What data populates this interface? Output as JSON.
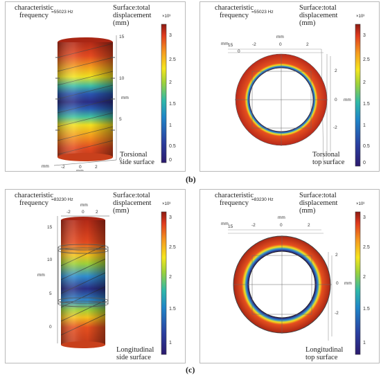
{
  "panels": {
    "torsional_side": {
      "freq_label": "characteristic frequency",
      "freq_value": "=55023 Hz",
      "disp_label": "Surface:total displacement (mm)",
      "colorbar_exp": "×10³",
      "colorbar_ticks": [
        "3",
        "2.5",
        "2",
        "1.5",
        "1",
        "0.5",
        "0"
      ],
      "axis_ticks": [
        "15",
        "10",
        "5",
        "0"
      ],
      "axis_unit": "mm",
      "x_ticks": [
        "-2",
        "0",
        "2"
      ],
      "x_unit_left": "mm",
      "x_unit_bottom": "mm",
      "bottom_label_1": "Torsional",
      "bottom_label_2": "side surface"
    },
    "torsional_top": {
      "freq_label": "characteristic frequency",
      "freq_value": "=55023 Hz",
      "disp_label": "Surface:total displacement (mm)",
      "colorbar_exp": "×10³",
      "colorbar_ticks": [
        "3",
        "2.5",
        "2",
        "1.5",
        "1",
        "0.5",
        "0"
      ],
      "top_ticks": [
        "-2",
        "0",
        "2"
      ],
      "top_unit": "mm",
      "left_ticks": [
        "15",
        "0"
      ],
      "left_unit": "mm",
      "right_ticks": [
        "2",
        "0",
        "-2"
      ],
      "right_unit": "mm",
      "bottom_label_1": "Torsional",
      "bottom_label_2": "top surface"
    },
    "longitudinal_side": {
      "freq_label": "characteristic frequency",
      "freq_value": "=83230 Hz",
      "disp_label": "Surface:total displacement (mm)",
      "colorbar_exp": "×10³",
      "colorbar_ticks": [
        "3",
        "2.5",
        "2",
        "1.5",
        "1"
      ],
      "axis_ticks": [
        "15",
        "10",
        "5",
        "0"
      ],
      "axis_unit": "mm",
      "x_ticks": [
        "-2",
        "0",
        "2"
      ],
      "x_unit": "mm",
      "bottom_label_1": "Longitudinal",
      "bottom_label_2": "side surface"
    },
    "longitudinal_top": {
      "freq_label": "characteristic frequency",
      "freq_value": "=83230 Hz",
      "disp_label": "Surface:total displacement (mm)",
      "colorbar_exp": "×10³",
      "colorbar_ticks": [
        "3",
        "2.5",
        "2",
        "1.5",
        "1"
      ],
      "top_ticks": [
        "-2",
        "0",
        "2"
      ],
      "top_unit": "mm",
      "left_ticks": [
        "15"
      ],
      "left_unit": "mm",
      "right_ticks": [
        "2",
        "0",
        "-2"
      ],
      "right_unit": "mm",
      "bottom_label_1": "Longitudinal",
      "bottom_label_2": "top surface"
    }
  },
  "captions": {
    "b": "(b)",
    "c": "(c)"
  }
}
